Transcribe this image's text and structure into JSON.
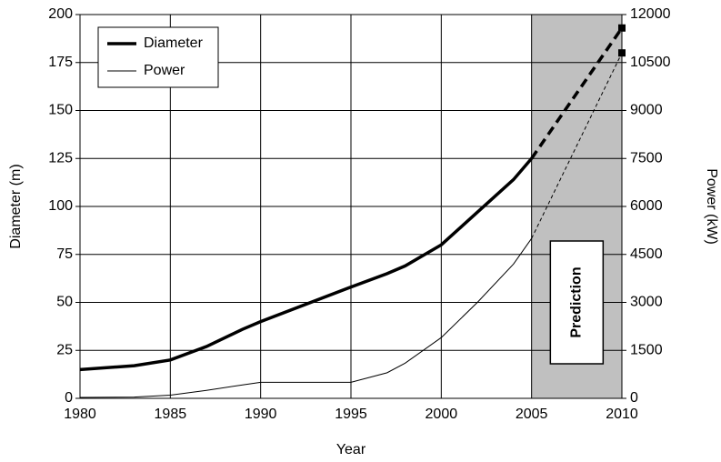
{
  "chart_data": {
    "type": "line",
    "xlabel": "Year",
    "ylabel": "Diameter (m)",
    "y2label": "Power (kW)",
    "x": [
      1980,
      1983,
      1985,
      1987,
      1989,
      1990,
      1995,
      1997,
      1998,
      2000,
      2002,
      2004,
      2005,
      2010
    ],
    "series": [
      {
        "name": "Diameter",
        "color": "#000000",
        "line_width": 3.5,
        "values": [
          15,
          17,
          20,
          27,
          36,
          40,
          58,
          65,
          69,
          80,
          97,
          114,
          125,
          193
        ]
      },
      {
        "name": "Power",
        "color": "#000000",
        "line_width": 1,
        "axis": "y2",
        "values": [
          30,
          40,
          100,
          250,
          420,
          500,
          500,
          800,
          1100,
          1900,
          3000,
          4200,
          5000,
          10800
        ]
      }
    ],
    "xlim": [
      1980,
      2010
    ],
    "xticks": [
      1980,
      1985,
      1990,
      1995,
      2000,
      2005,
      2010
    ],
    "ylim": [
      0,
      200
    ],
    "yticks": [
      0,
      25,
      50,
      75,
      100,
      125,
      150,
      175,
      200
    ],
    "y2lim": [
      0,
      12000
    ],
    "y2ticks": [
      0,
      1500,
      3000,
      4500,
      6000,
      7500,
      9000,
      10500,
      12000
    ],
    "grid": true,
    "legend": "upper left",
    "end_marker": "square",
    "shaded_region": {
      "x": [
        2005,
        2010
      ],
      "label": "Prediction",
      "color": "#c0c0c0"
    }
  }
}
